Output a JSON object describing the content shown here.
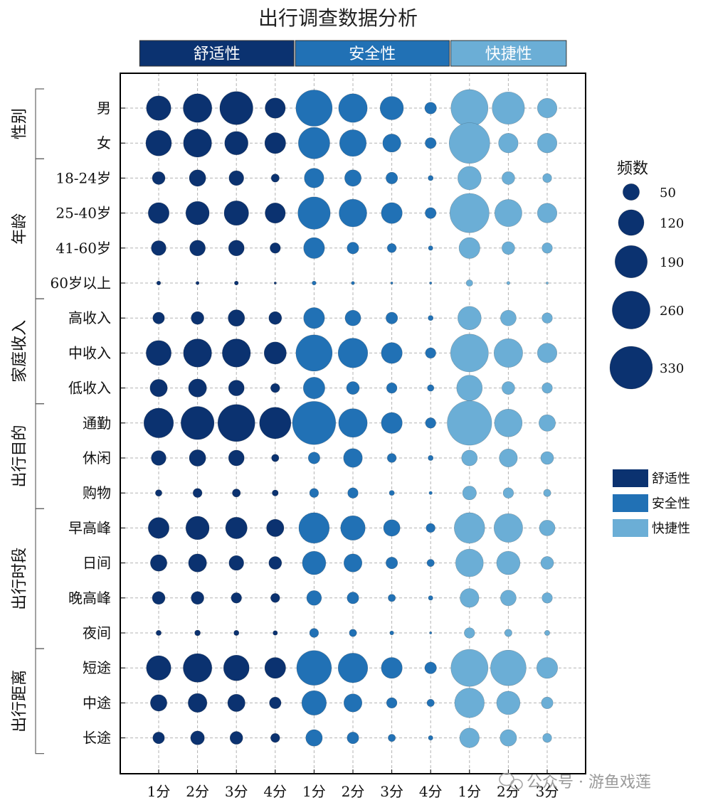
{
  "chart_data": {
    "type": "scatter",
    "title": "出行调查数据分析",
    "groups": [
      {
        "name": "舒适性",
        "color": "#0b3270",
        "scores": [
          "1分",
          "2分",
          "3分",
          "4分"
        ]
      },
      {
        "name": "安全性",
        "color": "#2171b5",
        "scores": [
          "1分",
          "2分",
          "3分",
          "4分"
        ]
      },
      {
        "name": "快捷性",
        "color": "#6baed6",
        "scores": [
          "1分",
          "2分",
          "3分"
        ]
      }
    ],
    "categories": [
      {
        "name": "性别",
        "items": [
          "男",
          "女"
        ]
      },
      {
        "name": "年龄",
        "items": [
          "18-24岁",
          "25-40岁",
          "41-60岁",
          "60岁以上"
        ]
      },
      {
        "name": "家庭收入",
        "items": [
          "高收入",
          "中收入",
          "低收入"
        ]
      },
      {
        "name": "出行目的",
        "items": [
          "通勤",
          "休闲",
          "购物"
        ]
      },
      {
        "name": "出行时段",
        "items": [
          "早高峰",
          "日间",
          "晚高峰",
          "夜间"
        ]
      },
      {
        "name": "出行距离",
        "items": [
          "短途",
          "中途",
          "长途"
        ]
      }
    ],
    "values": [
      [
        110,
        150,
        200,
        75,
        240,
        150,
        100,
        25,
        250,
        190,
        70
      ],
      [
        120,
        145,
        100,
        80,
        180,
        130,
        60,
        22,
        300,
        70,
        70
      ],
      [
        30,
        50,
        40,
        12,
        70,
        50,
        25,
        5,
        100,
        30,
        15
      ],
      [
        80,
        100,
        110,
        75,
        190,
        140,
        80,
        22,
        280,
        135,
        70
      ],
      [
        40,
        45,
        45,
        20,
        80,
        25,
        15,
        4,
        80,
        30,
        20
      ],
      [
        3,
        2,
        3,
        1,
        3,
        2,
        1,
        1,
        8,
        2,
        1
      ],
      [
        25,
        30,
        50,
        30,
        80,
        45,
        25,
        5,
        100,
        45,
        20
      ],
      [
        115,
        145,
        145,
        90,
        240,
        160,
        80,
        20,
        260,
        150,
        70
      ],
      [
        55,
        60,
        45,
        15,
        85,
        30,
        20,
        8,
        120,
        30,
        20
      ],
      [
        160,
        200,
        250,
        180,
        340,
        150,
        80,
        20,
        360,
        140,
        50
      ],
      [
        40,
        50,
        45,
        10,
        25,
        65,
        15,
        5,
        45,
        60,
        30
      ],
      [
        8,
        15,
        12,
        7,
        15,
        20,
        5,
        2,
        35,
        20,
        10
      ],
      [
        80,
        100,
        85,
        55,
        170,
        110,
        50,
        15,
        170,
        150,
        45
      ],
      [
        50,
        60,
        40,
        30,
        100,
        60,
        25,
        10,
        140,
        100,
        30
      ],
      [
        30,
        30,
        20,
        15,
        40,
        25,
        10,
        4,
        65,
        45,
        20
      ],
      [
        5,
        6,
        5,
        4,
        15,
        10,
        3,
        1,
        20,
        10,
        5
      ],
      [
        110,
        150,
        120,
        80,
        220,
        160,
        80,
        25,
        250,
        230,
        80
      ],
      [
        50,
        65,
        55,
        25,
        110,
        60,
        20,
        10,
        160,
        100,
        25
      ],
      [
        25,
        35,
        30,
        15,
        50,
        25,
        10,
        4,
        70,
        50,
        15
      ]
    ],
    "legend": {
      "title": "频数",
      "sizes": [
        50,
        120,
        190,
        260,
        330
      ]
    },
    "watermark": "公众号 · 游鱼戏莲"
  }
}
